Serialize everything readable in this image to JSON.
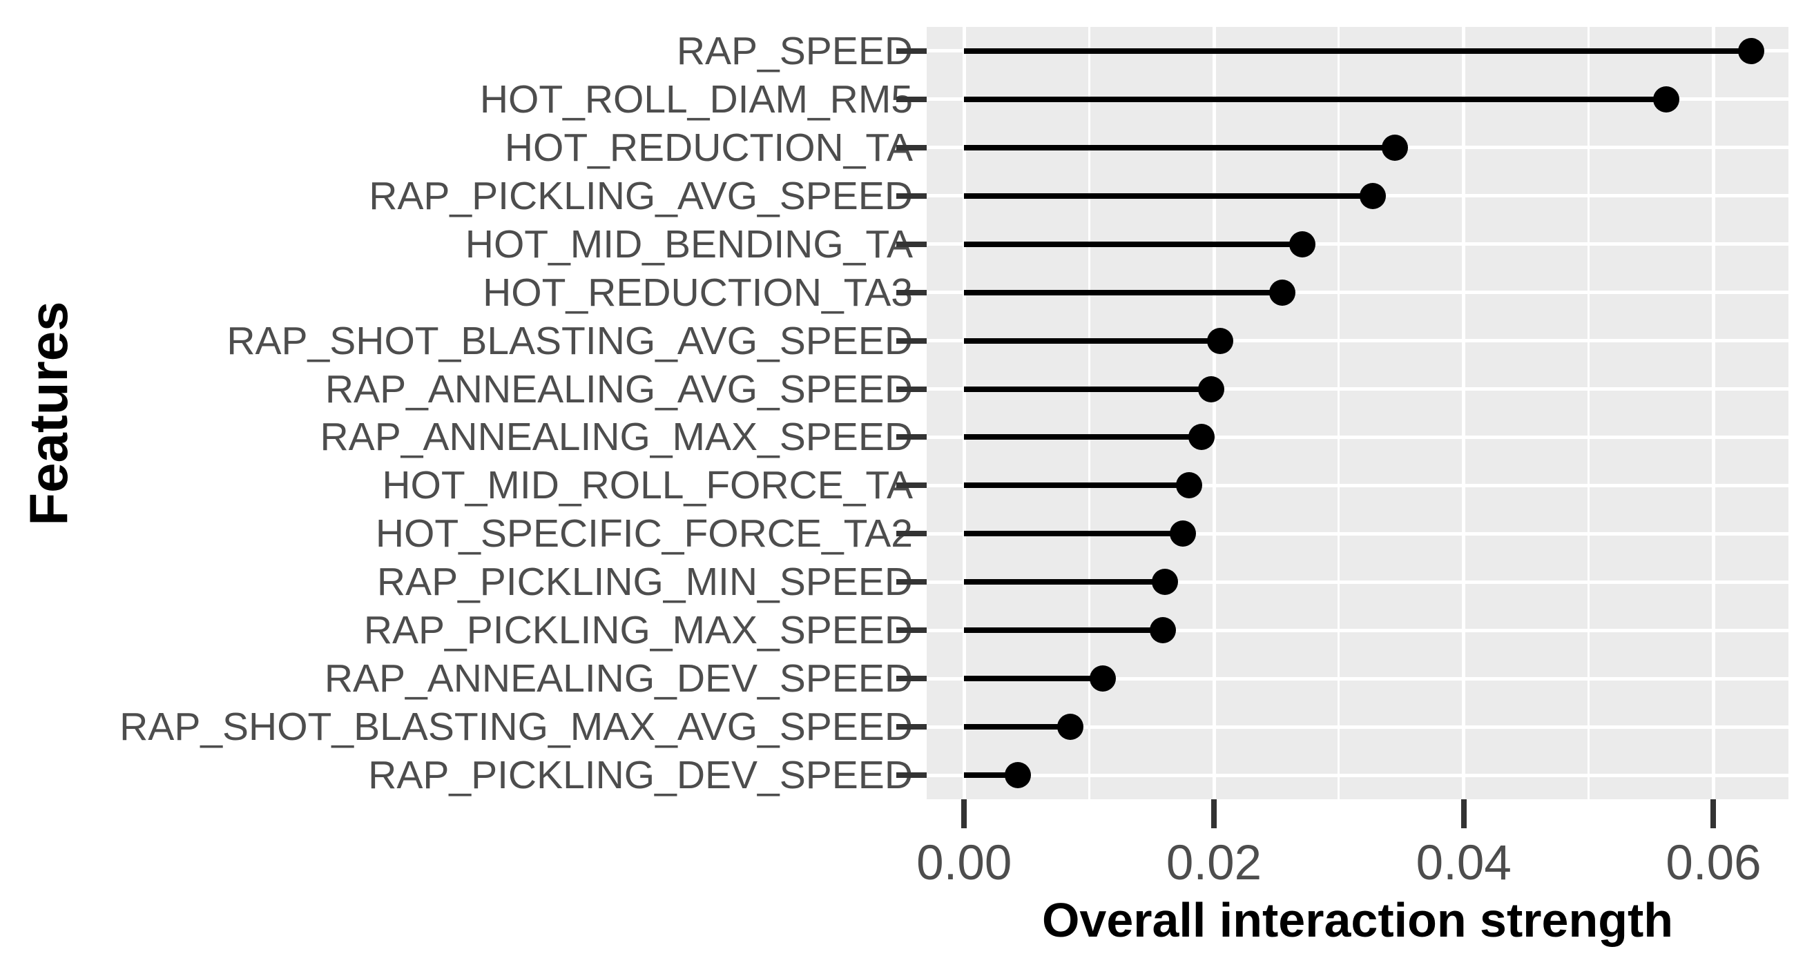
{
  "chart_data": {
    "type": "bar",
    "variant": "lollipop-horizontal",
    "title": "",
    "xlabel": "Overall interaction strength",
    "ylabel": "Features",
    "categories": [
      "RAP_SPEED",
      "HOT_ROLL_DIAM_RM5",
      "HOT_REDUCTION_TA",
      "RAP_PICKLING_AVG_SPEED",
      "HOT_MID_BENDING_TA",
      "HOT_REDUCTION_TA3",
      "RAP_SHOT_BLASTING_AVG_SPEED",
      "RAP_ANNEALING_AVG_SPEED",
      "RAP_ANNEALING_MAX_SPEED",
      "HOT_MID_ROLL_FORCE_TA",
      "HOT_SPECIFIC_FORCE_TA2",
      "RAP_PICKLING_MIN_SPEED",
      "RAP_PICKLING_MAX_SPEED",
      "RAP_ANNEALING_DEV_SPEED",
      "RAP_SHOT_BLASTING_MAX_AVG_SPEED",
      "RAP_PICKLING_DEV_SPEED"
    ],
    "values": [
      0.063,
      0.0562,
      0.0345,
      0.0327,
      0.0271,
      0.0255,
      0.0205,
      0.0198,
      0.019,
      0.018,
      0.0175,
      0.0161,
      0.0159,
      0.0111,
      0.0085,
      0.0043
    ],
    "xlim": [
      -0.003,
      0.066
    ],
    "x_ticks": [
      0.0,
      0.02,
      0.04,
      0.06
    ],
    "x_tick_labels": [
      "0.00",
      "0.02",
      "0.04",
      "0.06"
    ],
    "x_minor_ticks": [
      0.01,
      0.03,
      0.05
    ],
    "grid": "on",
    "legend": "none",
    "colors": {
      "panel_background": "#EBEBEB",
      "gridline": "#FFFFFF",
      "point_and_segment": "#000000",
      "tick_label": "#4d4d4d",
      "axis_title": "#000000",
      "tick_mark": "#333333"
    }
  }
}
